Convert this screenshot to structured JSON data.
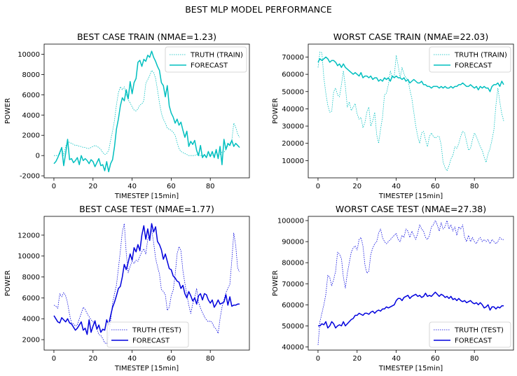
{
  "figure_title": "BEST MLP MODEL PERFORMANCE",
  "chart_data": [
    {
      "type": "line",
      "title": "BEST CASE TRAIN (NMAE=1.23)",
      "xlabel": "TIMESTEP [15min]",
      "ylabel": "POWER",
      "xlim": [
        -5,
        100
      ],
      "ylim": [
        -2200,
        11000
      ],
      "xticks": [
        0,
        20,
        40,
        60,
        80
      ],
      "yticks": [
        -2000,
        0,
        2000,
        4000,
        6000,
        8000,
        10000
      ],
      "legend_position": "upper-right",
      "series": [
        {
          "name": "TRUTH (TRAIN)",
          "color": "#00bfbf",
          "style": "dotted",
          "values": [
            0,
            0,
            0,
            100,
            800,
            0,
            900,
            1400,
            1300,
            1200,
            1100,
            1000,
            1000,
            900,
            900,
            800,
            800,
            700,
            700,
            800,
            900,
            1000,
            900,
            800,
            600,
            300,
            100,
            200,
            500,
            1500,
            2400,
            3500,
            5000,
            6200,
            6800,
            6500,
            6800,
            6000,
            5500,
            5200,
            4800,
            4500,
            4400,
            4600,
            5000,
            5100,
            5400,
            7100,
            7500,
            7900,
            8400,
            8200,
            7600,
            6500,
            5200,
            4200,
            3600,
            3200,
            2700,
            2600,
            2500,
            2300,
            2000,
            1300,
            700,
            400,
            300,
            200,
            100,
            0,
            0,
            0,
            0,
            100,
            0,
            0,
            0,
            0,
            0,
            0,
            100,
            0,
            100,
            300,
            0,
            100,
            400,
            300,
            600,
            1000,
            1200,
            1500,
            3200,
            2800,
            2100,
            1800
          ]
        },
        {
          "name": "FORECAST",
          "color": "#00bfbf",
          "style": "solid",
          "values": [
            -800,
            -600,
            -200,
            300,
            800,
            -1000,
            200,
            1600,
            -400,
            -300,
            -700,
            -500,
            -200,
            -900,
            0,
            -500,
            -300,
            -500,
            -800,
            -400,
            -600,
            -1100,
            -700,
            -300,
            -1000,
            -900,
            -1500,
            -600,
            -1600,
            -800,
            -400,
            900,
            2600,
            3600,
            4900,
            5700,
            5400,
            6500,
            5600,
            7300,
            6100,
            7200,
            7600,
            9200,
            9400,
            8800,
            9500,
            9300,
            9900,
            9700,
            10300,
            9700,
            9300,
            8800,
            8400,
            7200,
            6900,
            5800,
            6900,
            4900,
            4200,
            3800,
            3200,
            3600,
            3000,
            3300,
            2500,
            1800,
            2400,
            900,
            1400,
            1100,
            1500,
            500,
            0,
            1000,
            -200,
            100,
            -200,
            400,
            -100,
            400,
            -200,
            600,
            -300,
            900,
            -900,
            1600,
            600,
            1200,
            1000,
            1500,
            900,
            1200,
            1000,
            800
          ]
        }
      ]
    },
    {
      "type": "line",
      "title": "WORST CASE TRAIN (NMAE=22.03)",
      "xlabel": "TIMESTEP [15min]",
      "ylabel": "POWER",
      "xlim": [
        -5,
        100
      ],
      "ylim": [
        0,
        77500
      ],
      "xticks": [
        0,
        20,
        40,
        60,
        80
      ],
      "yticks": [
        10000,
        20000,
        30000,
        40000,
        50000,
        60000,
        70000
      ],
      "legend_position": "upper-right",
      "series": [
        {
          "name": "TRUTH (TRAIN)",
          "color": "#00bfbf",
          "style": "dotted",
          "values": [
            64000,
            73000,
            72500,
            58000,
            49000,
            42000,
            38000,
            38500,
            50000,
            52000,
            48000,
            47000,
            54000,
            62000,
            53000,
            41000,
            44000,
            39000,
            41000,
            43000,
            37000,
            34000,
            35000,
            29000,
            32000,
            38000,
            41000,
            30000,
            33000,
            38000,
            25000,
            20000,
            28000,
            35000,
            48000,
            49000,
            54000,
            62000,
            58000,
            59000,
            71000,
            65000,
            58000,
            64000,
            60000,
            58000,
            57000,
            51000,
            46000,
            38000,
            30000,
            24000,
            20000,
            26000,
            27000,
            22000,
            18000,
            24000,
            26000,
            24000,
            23000,
            24000,
            24000,
            19000,
            9000,
            6000,
            4000,
            7000,
            11000,
            13000,
            18000,
            17000,
            20000,
            24000,
            27000,
            26000,
            21000,
            16000,
            17000,
            22000,
            26000,
            24000,
            21000,
            18000,
            16000,
            12000,
            9000,
            14000,
            17000,
            22000,
            28000,
            42000,
            52000,
            44000,
            37000,
            33000
          ]
        },
        {
          "name": "FORECAST",
          "color": "#00bfbf",
          "style": "solid",
          "values": [
            67000,
            69000,
            68000,
            69000,
            70000,
            69000,
            67000,
            68000,
            68000,
            67000,
            65000,
            66000,
            64000,
            66000,
            64000,
            63000,
            62000,
            61000,
            60000,
            61000,
            60000,
            59000,
            61000,
            58000,
            59000,
            59000,
            58000,
            59000,
            57000,
            58000,
            58000,
            56000,
            57000,
            56000,
            58000,
            57000,
            58000,
            56000,
            59000,
            58000,
            59000,
            58000,
            58000,
            57000,
            58000,
            56000,
            57000,
            55000,
            56000,
            57000,
            56000,
            55000,
            55000,
            56000,
            54000,
            54000,
            53000,
            53000,
            52000,
            53000,
            53000,
            53000,
            52000,
            53000,
            52000,
            53000,
            52000,
            52000,
            53000,
            52000,
            53000,
            53000,
            54000,
            54000,
            55000,
            54000,
            53000,
            53000,
            54000,
            53000,
            52000,
            53000,
            51000,
            53000,
            52000,
            53000,
            52000,
            52000,
            50000,
            53000,
            54000,
            54000,
            55000,
            53000,
            56000,
            54000
          ]
        }
      ]
    },
    {
      "type": "line",
      "title": "BEST CASE TEST (NMAE=1.77)",
      "xlabel": "TIMESTEP [15min]",
      "ylabel": "POWER",
      "xlim": [
        -5,
        100
      ],
      "ylim": [
        1000,
        13800
      ],
      "xticks": [
        0,
        20,
        40,
        60,
        80
      ],
      "yticks": [
        2000,
        4000,
        6000,
        8000,
        10000,
        12000
      ],
      "legend_position": "lower-center",
      "series": [
        {
          "name": "TRUTH (TEST)",
          "color": "#0000dd",
          "style": "dotted",
          "values": [
            5300,
            5200,
            5000,
            6400,
            6100,
            6500,
            6200,
            5500,
            4400,
            3600,
            3500,
            3300,
            3400,
            4000,
            4500,
            5100,
            4900,
            4500,
            4200,
            3900,
            3700,
            3500,
            3000,
            2500,
            2400,
            2100,
            1700,
            1600,
            2300,
            3800,
            5500,
            6400,
            7200,
            8800,
            10500,
            12300,
            13100,
            10300,
            8400,
            9000,
            9500,
            9300,
            9600,
            9500,
            10000,
            10400,
            10700,
            10200,
            11600,
            12000,
            12500,
            11300,
            9800,
            9000,
            8300,
            6800,
            6600,
            6300,
            4800,
            5100,
            6200,
            6700,
            8200,
            10200,
            10900,
            10500,
            8600,
            7400,
            6300,
            5300,
            4500,
            5400,
            6000,
            6900,
            5600,
            5000,
            4600,
            4200,
            3900,
            3700,
            3800,
            3600,
            3200,
            3000,
            2600,
            4000,
            5100,
            5800,
            6500,
            6900,
            7300,
            9600,
            12200,
            11000,
            8800,
            8500
          ]
        },
        {
          "name": "FORECAST",
          "color": "#0000dd",
          "style": "solid",
          "values": [
            4300,
            4000,
            3700,
            3600,
            4100,
            3900,
            3700,
            4000,
            3600,
            3500,
            3200,
            2900,
            3100,
            3400,
            3700,
            2900,
            3100,
            2500,
            3900,
            2700,
            3300,
            3800,
            3000,
            3400,
            2700,
            3000,
            2900,
            3900,
            3400,
            4300,
            5100,
            5600,
            6200,
            6900,
            7100,
            8000,
            9200,
            8700,
            9400,
            10200,
            9600,
            10800,
            10400,
            11100,
            10500,
            12000,
            12900,
            11600,
            12600,
            11500,
            13100,
            12300,
            12800,
            11400,
            11100,
            10600,
            9700,
            10200,
            9500,
            8800,
            8700,
            8100,
            7900,
            7600,
            7500,
            6900,
            7200,
            6400,
            6000,
            6600,
            6200,
            5700,
            6000,
            5400,
            6200,
            6400,
            5800,
            6400,
            6300,
            5800,
            5500,
            5800,
            5100,
            5400,
            5800,
            5400,
            5500,
            5600,
            6300,
            5300,
            6100,
            5200,
            5300,
            5300,
            5400,
            5400
          ]
        }
      ]
    },
    {
      "type": "line",
      "title": "WORST CASE TEST (NMAE=27.38)",
      "xlabel": "TIMESTEP [15min]",
      "ylabel": "POWER",
      "xlim": [
        -5,
        100
      ],
      "ylim": [
        38500,
        102000
      ],
      "xticks": [
        0,
        20,
        40,
        60,
        80
      ],
      "yticks": [
        40000,
        50000,
        60000,
        70000,
        80000,
        90000,
        100000
      ],
      "legend_position": "lower-right",
      "series": [
        {
          "name": "TRUTH (TEST)",
          "color": "#0000dd",
          "style": "dotted",
          "values": [
            41000,
            52000,
            56000,
            60000,
            65000,
            74000,
            73000,
            69000,
            72000,
            76000,
            85000,
            84000,
            82000,
            73000,
            68000,
            75000,
            80000,
            85000,
            87000,
            88000,
            86000,
            91000,
            92000,
            88000,
            79000,
            75000,
            76000,
            84000,
            87000,
            89000,
            90000,
            94000,
            96000,
            92000,
            90000,
            89000,
            90000,
            91000,
            92000,
            93000,
            94000,
            91000,
            90000,
            93000,
            92000,
            96000,
            95000,
            92000,
            95000,
            93000,
            91000,
            94000,
            98000,
            96000,
            95000,
            92000,
            91000,
            93000,
            97000,
            98000,
            100000,
            98000,
            95000,
            99000,
            96000,
            97000,
            100000,
            96000,
            98000,
            95000,
            97000,
            93000,
            97000,
            96000,
            98000,
            92000,
            90000,
            93000,
            90000,
            92000,
            90000,
            89000,
            91000,
            92000,
            90000,
            91000,
            90000,
            91000,
            89000,
            91000,
            90000,
            89000,
            90000,
            92000,
            91000,
            91000
          ]
        },
        {
          "name": "FORECAST",
          "color": "#0000dd",
          "style": "solid",
          "values": [
            50000,
            50000,
            51000,
            50500,
            52000,
            49000,
            50000,
            52000,
            51000,
            49000,
            50000,
            50500,
            50000,
            52000,
            50000,
            51000,
            52000,
            53000,
            53500,
            55000,
            55000,
            56000,
            55500,
            55000,
            56000,
            56000,
            55500,
            56500,
            57000,
            56000,
            57000,
            57500,
            57000,
            58000,
            58000,
            59000,
            58500,
            59000,
            59500,
            60000,
            62000,
            63000,
            63000,
            62000,
            63500,
            64000,
            64500,
            63000,
            64000,
            64500,
            65000,
            64000,
            64500,
            63500,
            64000,
            65500,
            64000,
            64500,
            64000,
            65000,
            66000,
            65000,
            64000,
            65000,
            64500,
            63500,
            64000,
            63000,
            64000,
            62500,
            63000,
            62000,
            63000,
            62000,
            61500,
            62000,
            61000,
            61500,
            62000,
            61000,
            60500,
            61000,
            60000,
            61000,
            60000,
            58500,
            59000,
            60000,
            57500,
            59000,
            59000,
            58000,
            59000,
            58500,
            59500,
            59500
          ]
        }
      ]
    }
  ]
}
